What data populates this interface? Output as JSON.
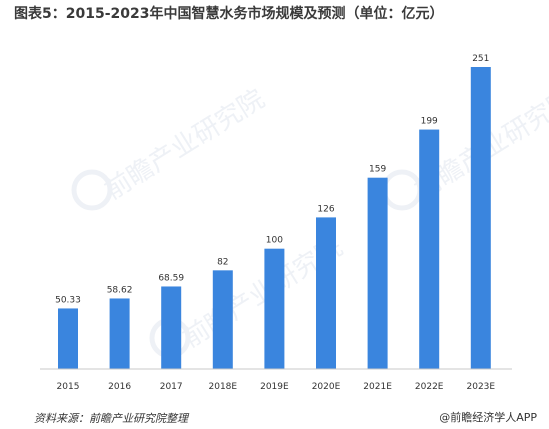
{
  "title": "图表5：2015-2023年中国智慧水务市场规模及预测（单位：亿元）",
  "source": "资料来源：前瞻产业研究院整理",
  "brand": "@前瞻经济学人APP",
  "watermark": {
    "text": "前瞻产业研究院",
    "icon": "foresight-logo-icon"
  },
  "colors": {
    "bar": "#3a85de",
    "baseline": "#c8c8c8",
    "watermark": "#e3e8ef"
  },
  "chart_data": {
    "type": "bar",
    "title": "图表5：2015-2023年中国智慧水务市场规模及预测（单位：亿元）",
    "xlabel": "",
    "ylabel": "",
    "grid": false,
    "categories": [
      "2015",
      "2016",
      "2017",
      "2018E",
      "2019E",
      "2020E",
      "2021E",
      "2022E",
      "2023E"
    ],
    "values": [
      50.33,
      58.62,
      68.59,
      82,
      100,
      126,
      159,
      199,
      251
    ],
    "data_labels": [
      "50.33",
      "58.62",
      "68.59",
      "82",
      "100",
      "126",
      "159",
      "199",
      "251"
    ],
    "ylim": [
      0,
      251
    ]
  }
}
